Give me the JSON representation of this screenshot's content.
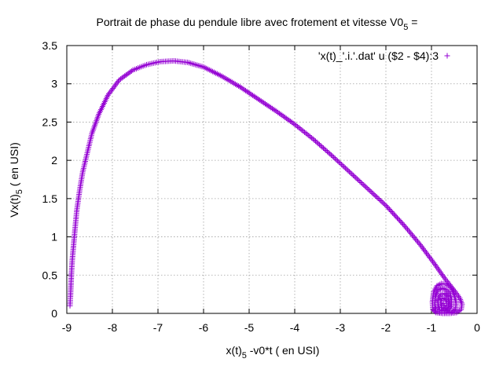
{
  "chart_data": {
    "type": "scatter",
    "title": "Portrait de phase du pendule libre avec frotement et vitesse V0",
    "title_sub": "5",
    "title_suffix": " =",
    "xlabel": {
      "main": "x(t)",
      "sub": "5",
      "rest": " -v0*t ( en USI)"
    },
    "ylabel": {
      "main": "Vx(t)",
      "sub": "5",
      "rest": " ( en USI)"
    },
    "xlim": [
      -9,
      0
    ],
    "ylim": [
      0,
      3.5
    ],
    "xticks": [
      -9,
      -8,
      -7,
      -6,
      -5,
      -4,
      -3,
      -2,
      -1,
      0
    ],
    "yticks": [
      0,
      0.5,
      1,
      1.5,
      2,
      2.5,
      3,
      3.5
    ],
    "xtick_labels": [
      "-9",
      "-8",
      "-7",
      "-6",
      "-5",
      "-4",
      "-3",
      "-2",
      "-1",
      "0"
    ],
    "ytick_labels": [
      "0",
      "0.5",
      "1",
      "1.5",
      "2",
      "2.5",
      "3",
      "3.5"
    ],
    "grid": true,
    "legend_position": "top-right",
    "series": [
      {
        "name": "'x(t)_'.i.'.dat' u ($2 - $4):3",
        "color": "#9400d3",
        "marker": "+",
        "points": [
          [
            -8.93,
            0.1
          ],
          [
            -8.92,
            0.22
          ],
          [
            -8.91,
            0.35
          ],
          [
            -8.9,
            0.5
          ],
          [
            -8.88,
            0.7
          ],
          [
            -8.85,
            0.9
          ],
          [
            -8.82,
            1.1
          ],
          [
            -8.78,
            1.35
          ],
          [
            -8.72,
            1.6
          ],
          [
            -8.65,
            1.85
          ],
          [
            -8.55,
            2.1
          ],
          [
            -8.45,
            2.35
          ],
          [
            -8.3,
            2.6
          ],
          [
            -8.1,
            2.85
          ],
          [
            -7.85,
            3.05
          ],
          [
            -7.55,
            3.18
          ],
          [
            -7.25,
            3.25
          ],
          [
            -6.95,
            3.29
          ],
          [
            -6.65,
            3.3
          ],
          [
            -6.35,
            3.28
          ],
          [
            -6.0,
            3.22
          ],
          [
            -5.6,
            3.1
          ],
          [
            -5.2,
            2.96
          ],
          [
            -4.8,
            2.8
          ],
          [
            -4.4,
            2.64
          ],
          [
            -4.0,
            2.47
          ],
          [
            -3.6,
            2.28
          ],
          [
            -3.2,
            2.07
          ],
          [
            -2.8,
            1.85
          ],
          [
            -2.4,
            1.63
          ],
          [
            -2.0,
            1.41
          ],
          [
            -1.6,
            1.15
          ],
          [
            -1.25,
            0.9
          ],
          [
            -0.95,
            0.66
          ],
          [
            -0.7,
            0.45
          ],
          [
            -0.5,
            0.3
          ],
          [
            -0.38,
            0.2
          ],
          [
            -0.33,
            0.12
          ],
          [
            -0.35,
            0.05
          ],
          [
            -0.45,
            0.01
          ],
          [
            -0.6,
            0.0
          ],
          [
            -0.75,
            0.0
          ],
          [
            -0.9,
            0.01
          ],
          [
            -0.97,
            0.05
          ],
          [
            -0.98,
            0.15
          ],
          [
            -0.95,
            0.28
          ],
          [
            -0.88,
            0.36
          ],
          [
            -0.78,
            0.39
          ],
          [
            -0.67,
            0.38
          ],
          [
            -0.57,
            0.33
          ],
          [
            -0.5,
            0.24
          ],
          [
            -0.46,
            0.14
          ],
          [
            -0.47,
            0.06
          ],
          [
            -0.55,
            0.02
          ],
          [
            -0.68,
            0.01
          ],
          [
            -0.82,
            0.01
          ],
          [
            -0.9,
            0.04
          ],
          [
            -0.93,
            0.12
          ],
          [
            -0.92,
            0.22
          ],
          [
            -0.86,
            0.3
          ],
          [
            -0.77,
            0.33
          ],
          [
            -0.68,
            0.31
          ],
          [
            -0.6,
            0.26
          ],
          [
            -0.56,
            0.18
          ],
          [
            -0.56,
            0.1
          ],
          [
            -0.62,
            0.05
          ],
          [
            -0.72,
            0.03
          ],
          [
            -0.82,
            0.05
          ],
          [
            -0.86,
            0.12
          ],
          [
            -0.85,
            0.2
          ],
          [
            -0.79,
            0.25
          ],
          [
            -0.71,
            0.26
          ],
          [
            -0.64,
            0.22
          ],
          [
            -0.61,
            0.15
          ],
          [
            -0.64,
            0.09
          ],
          [
            -0.7,
            0.06
          ],
          [
            -0.77,
            0.08
          ],
          [
            -0.8,
            0.14
          ],
          [
            -0.77,
            0.19
          ],
          [
            -0.71,
            0.2
          ],
          [
            -0.67,
            0.16
          ],
          [
            -0.67,
            0.11
          ],
          [
            -0.72,
            0.1
          ],
          [
            -0.74,
            0.13
          ]
        ]
      }
    ]
  }
}
